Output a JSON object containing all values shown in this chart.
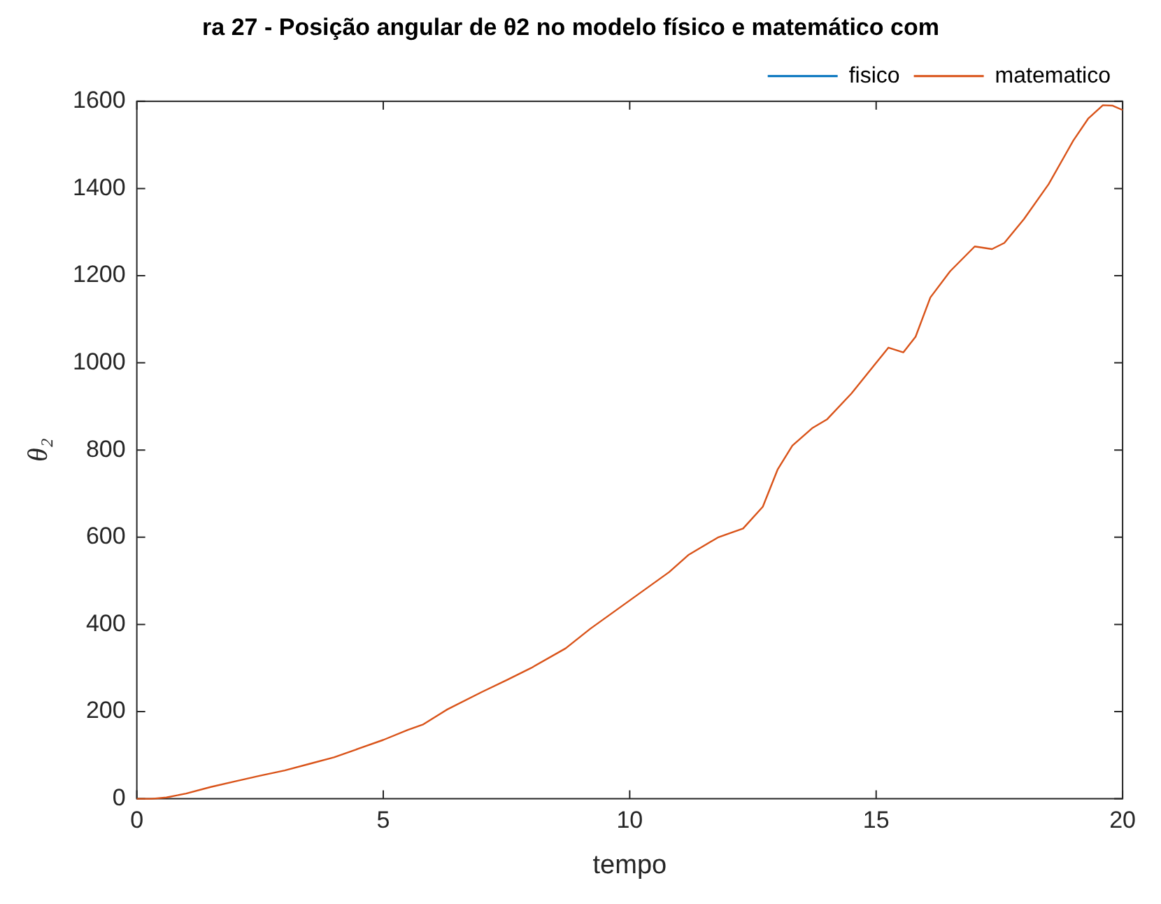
{
  "chart_data": {
    "type": "line",
    "title": "ra 27 - Posição angular de θ2 no modelo físico e matemático com",
    "xlabel": "tempo",
    "ylabel": "θ₂",
    "x": [
      0,
      0.3,
      0.6,
      1,
      1.5,
      2,
      2.5,
      3,
      3.5,
      4,
      4.5,
      5,
      5.5,
      5.8,
      6.3,
      7,
      7.5,
      8,
      8.7,
      9.2,
      10,
      10.8,
      11.2,
      11.8,
      12.3,
      12.7,
      13,
      13.3,
      13.7,
      14,
      14.5,
      15,
      15.25,
      15.55,
      15.8,
      16.1,
      16.5,
      17,
      17.35,
      17.6,
      18,
      18.5,
      19,
      19.3,
      19.6,
      19.8,
      20
    ],
    "series": [
      {
        "name": "fisico",
        "color": "#0072bd",
        "values": [
          null,
          null,
          null,
          null,
          null,
          null,
          null,
          null,
          null,
          null,
          null,
          null,
          null,
          null,
          null,
          null,
          null,
          null,
          null,
          null,
          null,
          null,
          null,
          null,
          null,
          null,
          null,
          null,
          null,
          null,
          null,
          null,
          null,
          null,
          null,
          null,
          null,
          null,
          null,
          null,
          null,
          null,
          null,
          null,
          null,
          null,
          null
        ]
      },
      {
        "name": "matematico",
        "color": "#d95319",
        "values": [
          0,
          0,
          3,
          12,
          27,
          40,
          53,
          65,
          80,
          95,
          115,
          135,
          158,
          170,
          205,
          245,
          272,
          300,
          345,
          390,
          455,
          520,
          560,
          600,
          620,
          670,
          755,
          810,
          850,
          870,
          930,
          1000,
          1035,
          1024,
          1060,
          1150,
          1210,
          1267,
          1261,
          1275,
          1330,
          1410,
          1510,
          1560,
          1591,
          1590,
          1580
        ]
      }
    ],
    "xlim": [
      0,
      20
    ],
    "xticks": [
      0,
      5,
      10,
      15,
      20
    ],
    "ylim": [
      0,
      1600
    ],
    "yticks": [
      0,
      200,
      400,
      600,
      800,
      1000,
      1200,
      1400,
      1600
    ],
    "legend": "top right",
    "marker": "none",
    "line_style": "solid"
  }
}
